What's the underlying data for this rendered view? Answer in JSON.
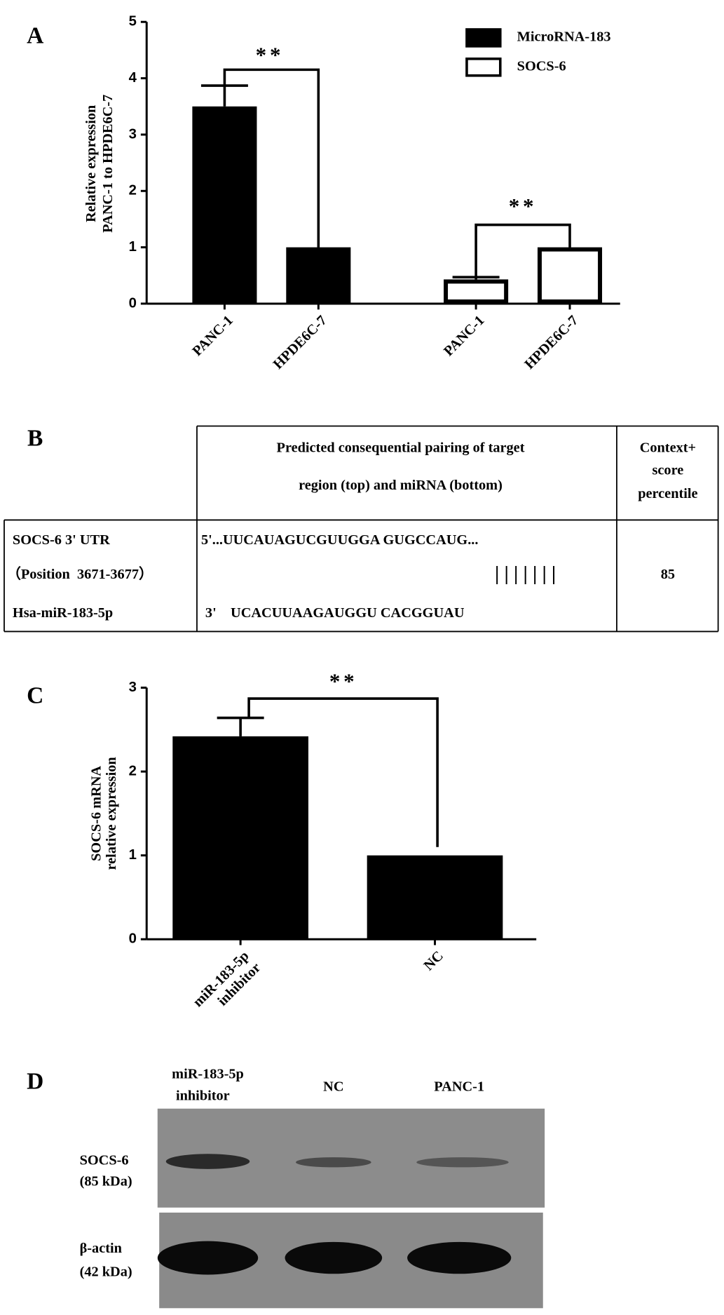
{
  "panel_labels": [
    "A",
    "B",
    "C",
    "D"
  ],
  "chart_data": [
    {
      "type": "bar",
      "ylabel": [
        "Relative expression",
        "PANC-1 to HPDE6C-7"
      ],
      "categories": [
        "PANC-1",
        "HPDE6C-7",
        "PANC-1",
        "HPDE6C-7"
      ],
      "series": [
        {
          "name": "MicroRNA-183",
          "color": "#000000",
          "values": [
            3.5,
            1.0,
            null,
            null
          ],
          "errors": [
            0.37,
            0,
            null,
            null
          ]
        },
        {
          "name": "SOCS-6",
          "color": "#ffffff",
          "values": [
            null,
            null,
            0.43,
            1.0
          ],
          "errors": [
            null,
            null,
            0.04,
            0
          ]
        }
      ],
      "ylim": [
        0,
        5
      ],
      "yticks": [
        0,
        1,
        2,
        3,
        4,
        5
      ],
      "annotations": [
        "**",
        "**"
      ],
      "legend": "upper right"
    },
    {
      "type": "bar",
      "ylabel": [
        "SOCS-6 mRNA",
        "relative expression"
      ],
      "categories": [
        [
          "miR-183-5p",
          "inhibitor"
        ],
        "NC"
      ],
      "series": [
        {
          "name": null,
          "color": "#000000",
          "values": [
            2.42,
            1.0
          ],
          "errors": [
            0.22,
            0
          ]
        }
      ],
      "ylim": [
        0,
        3
      ],
      "yticks": [
        0,
        1,
        2,
        3
      ],
      "annotations": [
        "**"
      ]
    }
  ],
  "table": {
    "header": [
      [
        "Predicted consequential pairing of target",
        "region (top) and miRNA (bottom)"
      ],
      [
        "Context+",
        "score",
        "percentile"
      ]
    ],
    "rows": [
      [
        "SOCS-6 3' UTR",
        "5'...UUCAUAGUCGUUGGA GUGCCAUG..."
      ],
      [
        "（Position  3671-3677）",
        "| | | | | | |",
        "85"
      ],
      [
        "Hsa-miR-183-5p",
        "3'    UCACUUAAGAUGGU CACGGUAU"
      ]
    ]
  },
  "blot": {
    "lanes": [
      [
        "miR-183-5p",
        "inhibitor"
      ],
      "NC",
      "PANC-1"
    ],
    "rows": [
      [
        "SOCS-6",
        "(85 kDa)"
      ],
      [
        "β-actin",
        "(42 kDa)"
      ]
    ]
  }
}
